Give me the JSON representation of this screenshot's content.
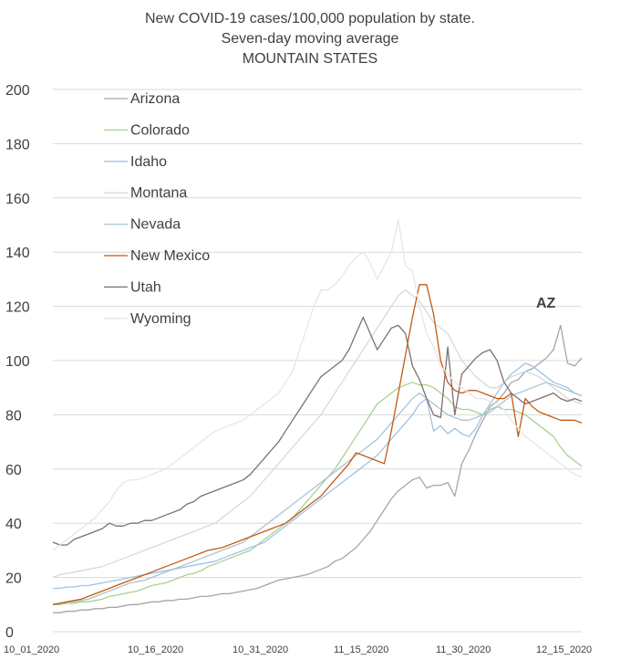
{
  "chart_data": {
    "type": "line",
    "title": "New COVID-19 cases/100,000 population by state.",
    "subtitle": "Seven-day moving average",
    "subtitle2": "MOUNTAIN STATES",
    "xlabel": "",
    "ylabel": "",
    "ylim": [
      0,
      200
    ],
    "yticks": [
      0,
      20,
      40,
      60,
      80,
      100,
      120,
      140,
      160,
      180,
      200
    ],
    "xticks": [
      "10_01_2020",
      "10_16_2020",
      "10_31_2020",
      "11_15_2020",
      "11_30_2020",
      "12_15_2020"
    ],
    "x_start": "10_01_2020",
    "x_end": "12_16_2020",
    "grid": true,
    "legend_position": "top-left",
    "annotation": "AZ",
    "series": [
      {
        "name": "Arizona",
        "color": "#a6a6a6",
        "values": [
          7,
          7,
          7.5,
          7.5,
          8,
          8,
          8.5,
          8.5,
          9,
          9,
          9.5,
          10,
          10,
          10.5,
          11,
          11,
          11.5,
          11.5,
          12,
          12,
          12.5,
          13,
          13,
          13.5,
          14,
          14,
          14.5,
          15,
          15.5,
          16,
          17,
          18,
          19,
          19.5,
          20,
          20.5,
          21,
          22,
          23,
          24,
          26,
          27,
          29,
          31,
          34,
          37,
          41,
          45,
          49,
          52,
          54,
          56,
          57,
          53,
          54,
          54,
          55,
          50,
          62,
          67,
          73,
          78,
          83,
          85,
          88,
          92,
          93,
          96,
          97,
          99,
          101,
          104,
          113,
          99,
          98,
          101
        ]
      },
      {
        "name": "Colorado",
        "color": "#a9d18e",
        "values": [
          10,
          10,
          10.5,
          10.5,
          11,
          11,
          11.5,
          12,
          13,
          13.5,
          14,
          14.5,
          15,
          16,
          17,
          17.5,
          18,
          19,
          20,
          21,
          21.5,
          22.5,
          24,
          25,
          26,
          27,
          28,
          29,
          30,
          32,
          34,
          36,
          38,
          40,
          42,
          45,
          48,
          51,
          54,
          57,
          60,
          64,
          68,
          72,
          76,
          80,
          84,
          86,
          88,
          90,
          91,
          92,
          91,
          91,
          90,
          88,
          86,
          83,
          82,
          82,
          81,
          80,
          82,
          83,
          82,
          82,
          81,
          80,
          78,
          76,
          74,
          72,
          68,
          65,
          63,
          61
        ]
      },
      {
        "name": "Idaho",
        "color": "#9dc3e6",
        "values": [
          16,
          16,
          16.5,
          16.5,
          17,
          17,
          17.5,
          18,
          18.5,
          19,
          19.5,
          20,
          20.5,
          21,
          21.5,
          22,
          22.5,
          23,
          23.5,
          24,
          24.5,
          25,
          25.5,
          26,
          27,
          28,
          29,
          30,
          31,
          32,
          33,
          35,
          37,
          39,
          41,
          43,
          45,
          47,
          49,
          51,
          53,
          55,
          57,
          59,
          61,
          63,
          65,
          68,
          71,
          74,
          77,
          80,
          84,
          86,
          74,
          76,
          73,
          75,
          73,
          72,
          75,
          80,
          84,
          88,
          92,
          95,
          97,
          99,
          98,
          96,
          94,
          92,
          91,
          90,
          88,
          87
        ]
      },
      {
        "name": "Montana",
        "color": "#d9d9d9",
        "values": [
          20,
          21,
          21.5,
          22,
          22.5,
          23,
          23.5,
          24,
          25,
          26,
          27,
          28,
          29,
          30,
          31,
          32,
          33,
          34,
          35,
          36,
          37,
          38,
          39,
          40,
          42,
          44,
          46,
          48,
          50,
          53,
          56,
          59,
          62,
          65,
          68,
          71,
          74,
          77,
          80,
          84,
          88,
          92,
          96,
          100,
          104,
          108,
          112,
          116,
          120,
          124,
          126,
          124,
          122,
          118,
          114,
          112,
          110,
          105,
          100,
          97,
          94,
          92,
          90,
          90,
          92,
          94,
          95,
          96,
          95,
          94,
          92,
          90,
          88,
          86,
          85,
          84
        ]
      },
      {
        "name": "Nevada",
        "color": "#a9c4d0",
        "values": [
          10,
          10.5,
          11,
          11,
          11.5,
          12,
          13,
          14,
          15,
          16,
          17,
          18,
          18.5,
          19,
          20,
          21,
          22,
          23,
          24,
          25,
          26,
          27,
          28,
          29,
          30,
          31,
          32,
          33,
          35,
          37,
          39,
          41,
          43,
          45,
          47,
          49,
          51,
          53,
          55,
          57,
          59,
          61,
          63,
          65,
          67,
          69,
          71,
          74,
          77,
          80,
          83,
          86,
          88,
          86,
          84,
          82,
          80,
          79,
          78,
          78,
          79,
          80,
          81,
          83,
          85,
          87,
          88,
          89,
          90,
          91,
          92,
          91,
          90,
          89,
          88,
          87
        ]
      },
      {
        "name": "New Mexico",
        "color": "#c55a11",
        "values": [
          10,
          10.5,
          11,
          11.5,
          12,
          13,
          14,
          15,
          16,
          17,
          18,
          19,
          20,
          21,
          22,
          23,
          24,
          25,
          26,
          27,
          28,
          29,
          30,
          30.5,
          31,
          32,
          33,
          34,
          35,
          36,
          37,
          38,
          39,
          40,
          42,
          44,
          46,
          48,
          50,
          53,
          56,
          59,
          62,
          66,
          65,
          64,
          63,
          62,
          74,
          88,
          102,
          116,
          128,
          128,
          117,
          100,
          92,
          89,
          88,
          89,
          89,
          88,
          87,
          86,
          86,
          88,
          72,
          86,
          83,
          81,
          80,
          79,
          78,
          78,
          78,
          77
        ]
      },
      {
        "name": "Utah",
        "color": "#7f6f6f",
        "values": [
          33,
          32,
          32,
          34,
          35,
          36,
          37,
          38,
          40,
          39,
          39,
          40,
          40,
          41,
          41,
          42,
          43,
          44,
          45,
          47,
          48,
          50,
          51,
          52,
          53,
          54,
          55,
          56,
          58,
          61,
          64,
          67,
          70,
          74,
          78,
          82,
          86,
          90,
          94,
          96,
          98,
          100,
          104,
          110,
          116,
          110,
          104,
          108,
          112,
          113,
          110,
          98,
          93,
          86,
          80,
          79,
          105,
          80,
          95,
          98,
          101,
          103,
          104,
          100,
          92,
          88,
          86,
          84,
          85,
          86,
          87,
          88,
          86,
          85,
          86,
          85
        ]
      },
      {
        "name": "Wyoming",
        "color": "#e7e6e6",
        "values": [
          30,
          32,
          34,
          36,
          38,
          40,
          42,
          45,
          48,
          52,
          55,
          56,
          56,
          57,
          58,
          59,
          60,
          62,
          64,
          66,
          68,
          70,
          72,
          74,
          75,
          76,
          77,
          78,
          80,
          82,
          84,
          86,
          88,
          92,
          96,
          104,
          112,
          120,
          126,
          126,
          128,
          131,
          135,
          138,
          140,
          136,
          130,
          135,
          140,
          152,
          135,
          133,
          120,
          110,
          105,
          98,
          95,
          92,
          90,
          88,
          86,
          86,
          85,
          84,
          82,
          78,
          75,
          72,
          70,
          68,
          66,
          64,
          62,
          60,
          58,
          57
        ]
      }
    ]
  }
}
